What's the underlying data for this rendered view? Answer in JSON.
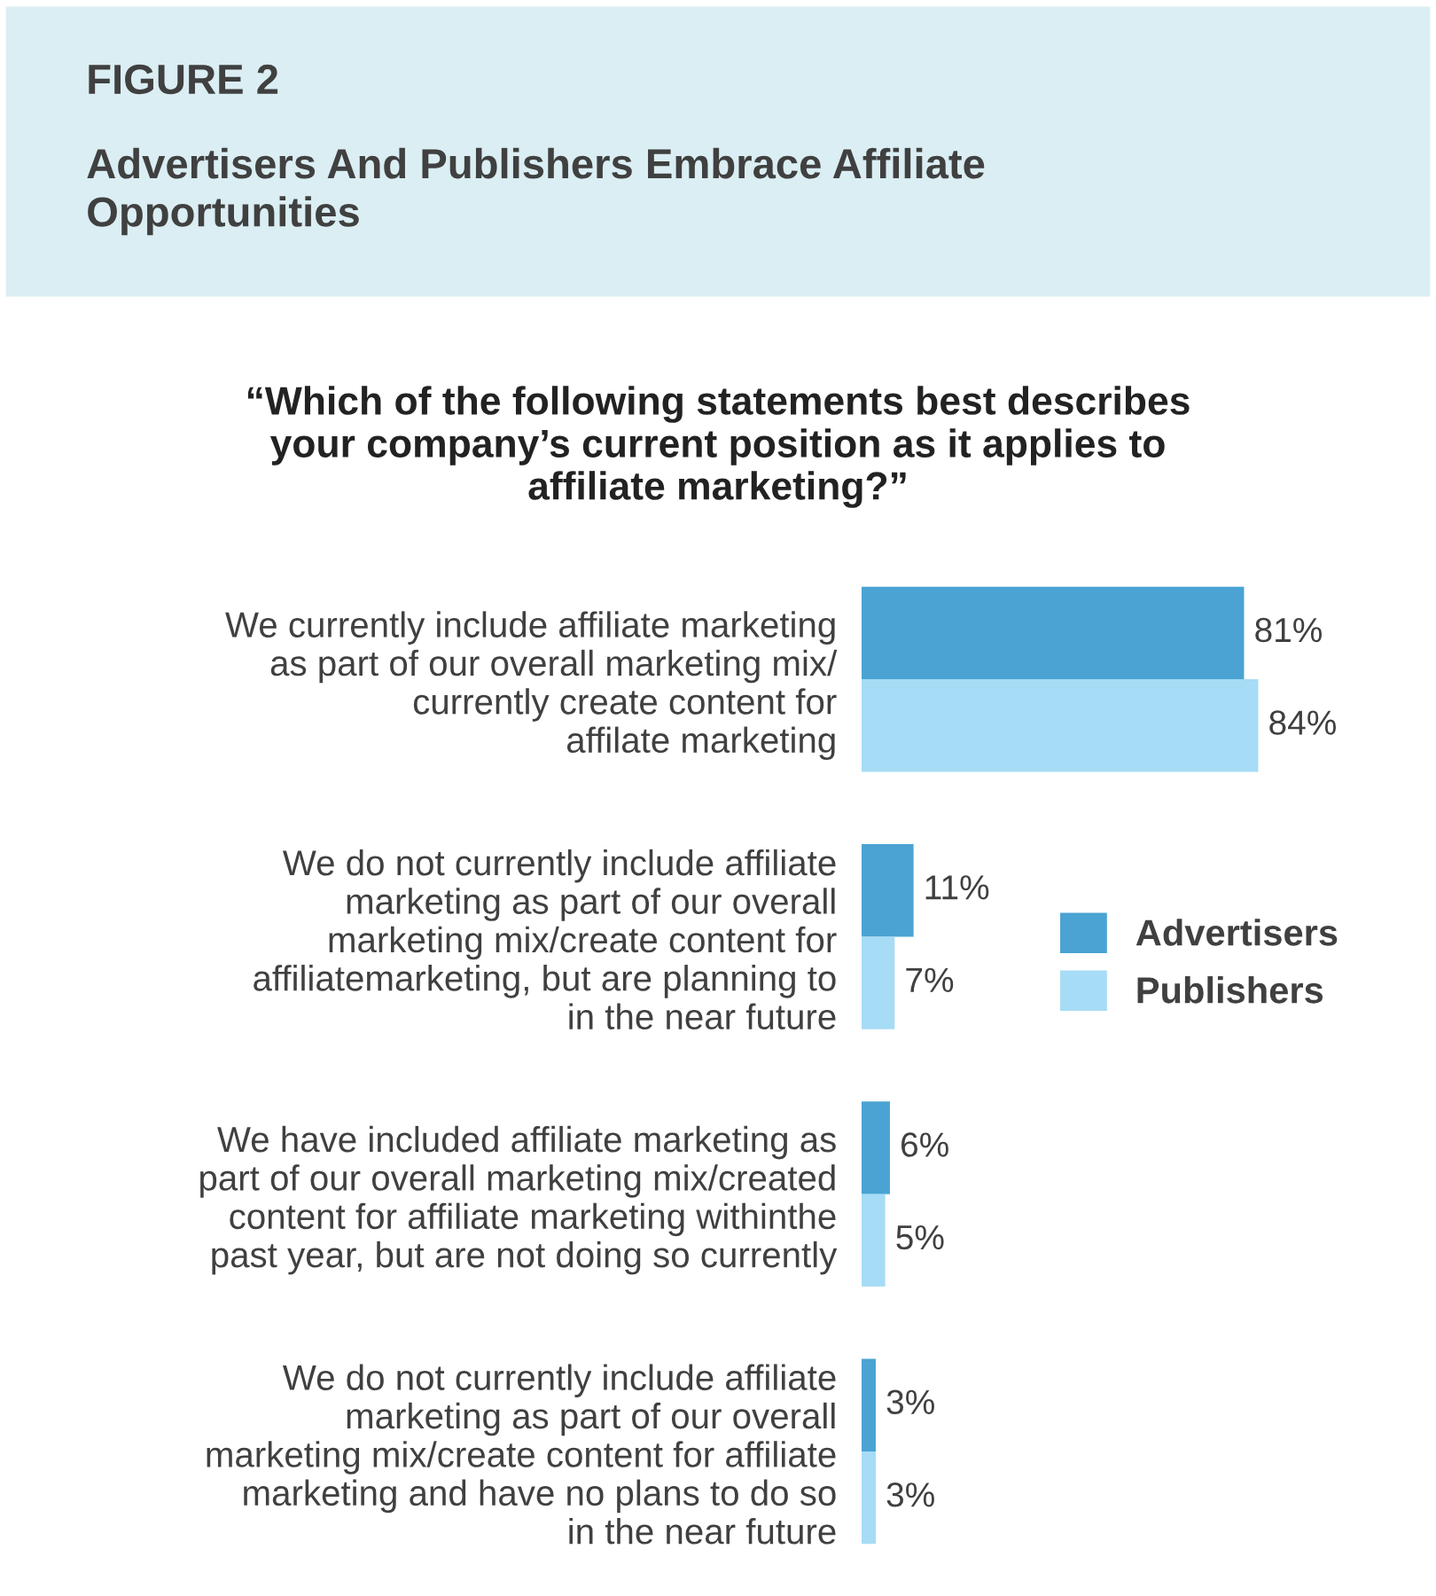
{
  "chart_data": {
    "type": "bar",
    "orientation": "horizontal",
    "title": "FIGURE 2",
    "subtitle": "Advertisers And Publishers Embrace Affiliate\nOpportunities",
    "annotations": [
      "“Which of the following statements best describes\nyour company’s current position as it applies to\naffiliate marketing?”"
    ],
    "categories": [
      "We currently include affiliate marketing\nas part of our overall marketing mix/\ncurrently create content for\naffilate marketing",
      "We do not currently include affiliate\nmarketing as part of our overall\nmarketing mix/create content for\naffiliatemarketing, but are planning to\nin the near future",
      "We have included affiliate marketing as\npart of our overall marketing mix/created\ncontent for affiliate marketing withinthe\npast year, but are not doing so currently",
      "We do not currently include affiliate\nmarketing as part of our overall\nmarketing mix/create content for affiliate\nmarketing and have no plans to do so\nin the near future"
    ],
    "series": [
      {
        "name": "Advertisers",
        "color": "#4aa3d3",
        "value_labels": [
          "81%",
          "11%",
          "6%",
          "3%"
        ],
        "values": [
          81,
          11,
          6,
          3
        ]
      },
      {
        "name": "Publishers",
        "color": "#a6dcf5",
        "value_labels": [
          "84%",
          "7%",
          "5%",
          "3%"
        ],
        "values": [
          84,
          7,
          5,
          3
        ]
      }
    ],
    "grid": false,
    "legend": "right"
  }
}
